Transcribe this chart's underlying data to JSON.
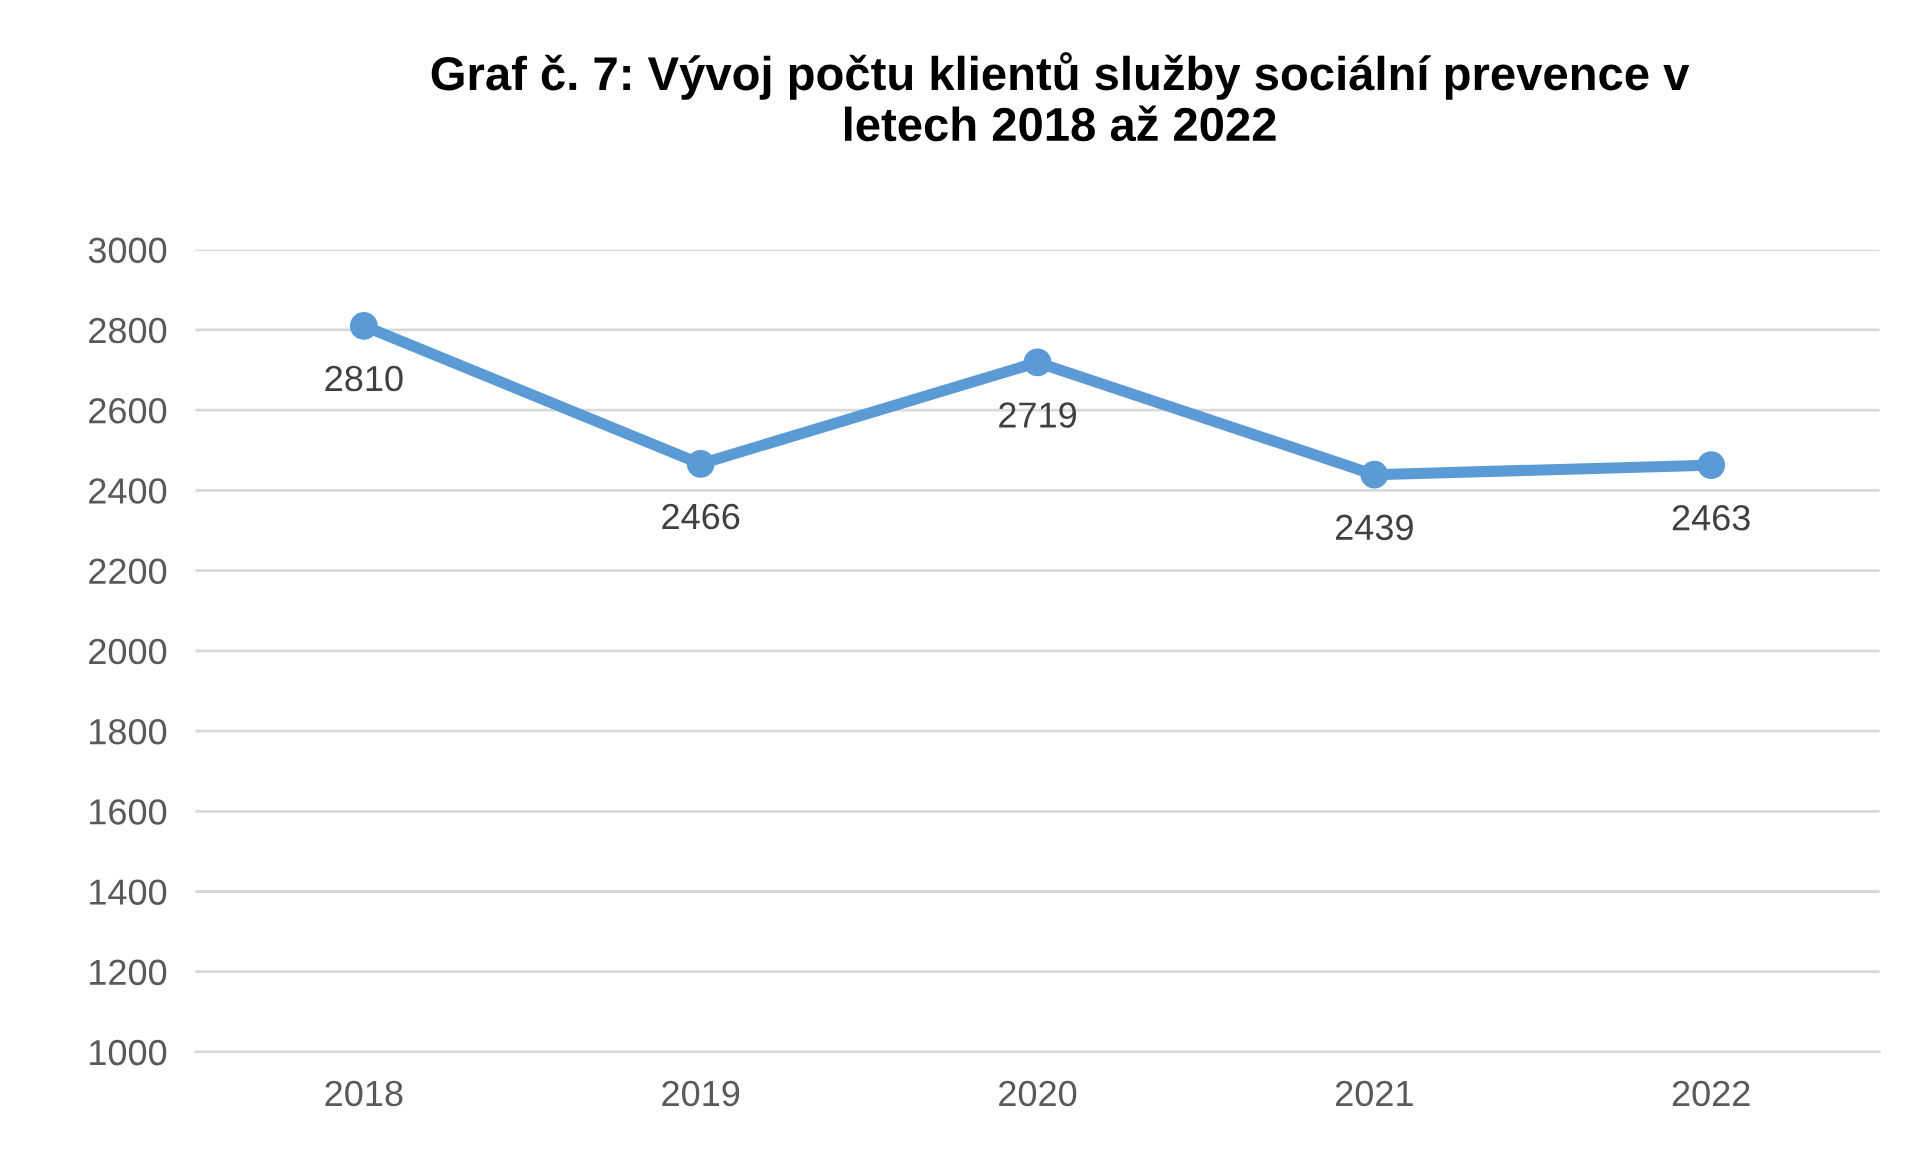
{
  "chart_data": {
    "type": "line",
    "title": "Graf č. 7: Vývoj počtu klientů služby sociální prevence v\nletech 2018 až 2022",
    "categories": [
      "2018",
      "2019",
      "2020",
      "2021",
      "2022"
    ],
    "series": [
      {
        "color": "#5b9bd5",
        "values": [
          2810,
          2466,
          2719,
          2439,
          2463
        ]
      }
    ],
    "ylim": [
      1000,
      3000
    ],
    "yticks": [
      1000,
      1200,
      1400,
      1600,
      1800,
      2000,
      2200,
      2400,
      2600,
      2800,
      3000
    ],
    "grid": "y",
    "marker": "circle",
    "line_style": "solid",
    "data_labels": true,
    "legend": false
  }
}
